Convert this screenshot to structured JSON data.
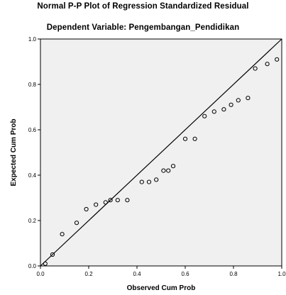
{
  "chart_data": {
    "type": "scatter",
    "title": "Normal P-P Plot of Regression Standardized Residual",
    "subtitle": "Dependent Variable: Pengembangan_Pendidikan",
    "xlabel": "Observed Cum Prob",
    "ylabel": "Expected Cum Prob",
    "xlim": [
      0,
      1
    ],
    "ylim": [
      0,
      1
    ],
    "x_ticks": [
      "0.0",
      "0.2",
      "0.4",
      "0.6",
      "0.8",
      "1.0"
    ],
    "y_ticks": [
      "0.0",
      "0.2",
      "0.4",
      "0.6",
      "0.8",
      "1.0"
    ],
    "grid": false,
    "reference_line": [
      [
        0,
        0
      ],
      [
        1,
        1
      ]
    ],
    "plot_background": "#f0f0f0",
    "series": [
      {
        "points": [
          [
            0.02,
            0.01
          ],
          [
            0.05,
            0.05
          ],
          [
            0.09,
            0.14
          ],
          [
            0.15,
            0.19
          ],
          [
            0.19,
            0.25
          ],
          [
            0.23,
            0.27
          ],
          [
            0.27,
            0.28
          ],
          [
            0.29,
            0.29
          ],
          [
            0.32,
            0.29
          ],
          [
            0.36,
            0.29
          ],
          [
            0.42,
            0.37
          ],
          [
            0.45,
            0.37
          ],
          [
            0.48,
            0.38
          ],
          [
            0.51,
            0.42
          ],
          [
            0.53,
            0.42
          ],
          [
            0.55,
            0.44
          ],
          [
            0.6,
            0.56
          ],
          [
            0.64,
            0.56
          ],
          [
            0.68,
            0.66
          ],
          [
            0.72,
            0.68
          ],
          [
            0.76,
            0.69
          ],
          [
            0.79,
            0.71
          ],
          [
            0.82,
            0.73
          ],
          [
            0.86,
            0.74
          ],
          [
            0.89,
            0.87
          ],
          [
            0.94,
            0.89
          ],
          [
            0.98,
            0.91
          ]
        ]
      }
    ]
  }
}
